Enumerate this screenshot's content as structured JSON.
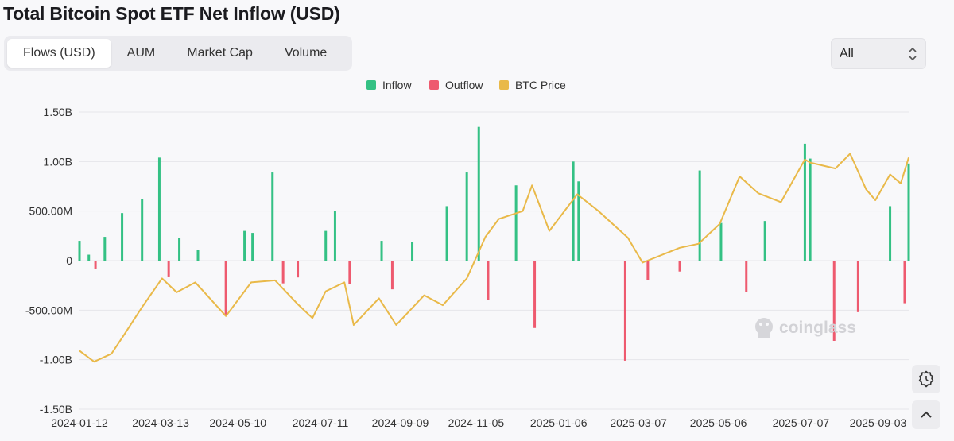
{
  "page": {
    "title": "Total Bitcoin Spot ETF Net Inflow (USD)"
  },
  "tabs": [
    {
      "label": "Flows (USD)",
      "active": true
    },
    {
      "label": "AUM",
      "active": false
    },
    {
      "label": "Market Cap",
      "active": false
    },
    {
      "label": "Volume",
      "active": false
    }
  ],
  "range_select": {
    "value": "All"
  },
  "watermark": {
    "text": "coinglass"
  },
  "colors": {
    "inflow": "#34c184",
    "outflow": "#ee5a6f",
    "btc_price": "#e9b949",
    "grid": "#e6e6ea",
    "axis_text": "#333333"
  },
  "chart_data": {
    "type": "bar",
    "title": "Total Bitcoin Spot ETF Net Inflow (USD)",
    "legend": [
      "Inflow",
      "Outflow",
      "BTC Price"
    ],
    "legend_position": "top-center",
    "grid": true,
    "x_tick_labels": [
      "2024-01-12",
      "2024-03-13",
      "2024-05-10",
      "2024-07-11",
      "2024-09-09",
      "2024-11-05",
      "2025-01-06",
      "2025-03-07",
      "2025-05-06",
      "2025-07-07",
      "2025-09-03"
    ],
    "y_tick_labels": [
      "1.50B",
      "1.00B",
      "500.00M",
      "0",
      "-500.00M",
      "-1.00B",
      "-1.50B"
    ],
    "ylim": [
      -1500000000,
      1500000000
    ],
    "x_range": [
      "2024-01-12",
      "2025-09-26"
    ],
    "net_flow_series": {
      "name": "Inflow / Outflow",
      "unit": "USD",
      "points": [
        [
          "2024-01-12",
          200000000
        ],
        [
          "2024-01-19",
          60000000
        ],
        [
          "2024-01-24",
          -80000000
        ],
        [
          "2024-01-31",
          240000000
        ],
        [
          "2024-02-13",
          480000000
        ],
        [
          "2024-02-28",
          620000000
        ],
        [
          "2024-03-12",
          1040000000
        ],
        [
          "2024-03-19",
          -160000000
        ],
        [
          "2024-03-27",
          230000000
        ],
        [
          "2024-04-10",
          110000000
        ],
        [
          "2024-05-01",
          -560000000
        ],
        [
          "2024-05-15",
          300000000
        ],
        [
          "2024-05-21",
          280000000
        ],
        [
          "2024-06-05",
          890000000
        ],
        [
          "2024-06-13",
          -230000000
        ],
        [
          "2024-06-24",
          -170000000
        ],
        [
          "2024-07-15",
          300000000
        ],
        [
          "2024-07-22",
          500000000
        ],
        [
          "2024-08-02",
          -240000000
        ],
        [
          "2024-08-26",
          200000000
        ],
        [
          "2024-09-03",
          -290000000
        ],
        [
          "2024-09-18",
          190000000
        ],
        [
          "2024-10-14",
          550000000
        ],
        [
          "2024-10-29",
          890000000
        ],
        [
          "2024-11-07",
          1350000000
        ],
        [
          "2024-11-14",
          -400000000
        ],
        [
          "2024-12-05",
          760000000
        ],
        [
          "2024-12-19",
          -680000000
        ],
        [
          "2025-01-17",
          1000000000
        ],
        [
          "2025-01-21",
          800000000
        ],
        [
          "2025-02-25",
          -1010000000
        ],
        [
          "2025-03-14",
          -200000000
        ],
        [
          "2025-04-07",
          -110000000
        ],
        [
          "2025-04-22",
          910000000
        ],
        [
          "2025-05-08",
          380000000
        ],
        [
          "2025-05-27",
          -320000000
        ],
        [
          "2025-06-10",
          400000000
        ],
        [
          "2025-07-10",
          1180000000
        ],
        [
          "2025-07-14",
          1030000000
        ],
        [
          "2025-08-01",
          -810000000
        ],
        [
          "2025-08-19",
          -520000000
        ],
        [
          "2025-09-12",
          550000000
        ],
        [
          "2025-09-23",
          -430000000
        ],
        [
          "2025-09-26",
          980000000
        ]
      ]
    },
    "btc_price_series": {
      "name": "BTC Price",
      "points": [
        [
          "2024-01-12",
          -910000000
        ],
        [
          "2024-01-23",
          -1020000000
        ],
        [
          "2024-02-05",
          -940000000
        ],
        [
          "2024-02-14",
          -760000000
        ],
        [
          "2024-02-28",
          -470000000
        ],
        [
          "2024-03-14",
          -180000000
        ],
        [
          "2024-03-25",
          -320000000
        ],
        [
          "2024-04-08",
          -220000000
        ],
        [
          "2024-05-01",
          -560000000
        ],
        [
          "2024-05-20",
          -220000000
        ],
        [
          "2024-06-07",
          -200000000
        ],
        [
          "2024-06-24",
          -440000000
        ],
        [
          "2024-07-05",
          -580000000
        ],
        [
          "2024-07-15",
          -310000000
        ],
        [
          "2024-07-29",
          -220000000
        ],
        [
          "2024-08-05",
          -650000000
        ],
        [
          "2024-08-24",
          -380000000
        ],
        [
          "2024-09-06",
          -650000000
        ],
        [
          "2024-09-27",
          -350000000
        ],
        [
          "2024-10-11",
          -450000000
        ],
        [
          "2024-10-29",
          -180000000
        ],
        [
          "2024-11-12",
          240000000
        ],
        [
          "2024-11-22",
          420000000
        ],
        [
          "2024-12-10",
          500000000
        ],
        [
          "2024-12-17",
          760000000
        ],
        [
          "2024-12-30",
          300000000
        ],
        [
          "2025-01-20",
          670000000
        ],
        [
          "2025-02-05",
          500000000
        ],
        [
          "2025-02-27",
          230000000
        ],
        [
          "2025-03-10",
          -20000000
        ],
        [
          "2025-04-07",
          130000000
        ],
        [
          "2025-04-21",
          170000000
        ],
        [
          "2025-05-07",
          370000000
        ],
        [
          "2025-05-22",
          850000000
        ],
        [
          "2025-06-05",
          680000000
        ],
        [
          "2025-06-22",
          590000000
        ],
        [
          "2025-07-10",
          1020000000
        ],
        [
          "2025-07-14",
          990000000
        ],
        [
          "2025-08-02",
          930000000
        ],
        [
          "2025-08-13",
          1080000000
        ],
        [
          "2025-08-25",
          720000000
        ],
        [
          "2025-09-01",
          610000000
        ],
        [
          "2025-09-12",
          870000000
        ],
        [
          "2025-09-20",
          780000000
        ],
        [
          "2025-09-26",
          1040000000
        ]
      ]
    }
  }
}
